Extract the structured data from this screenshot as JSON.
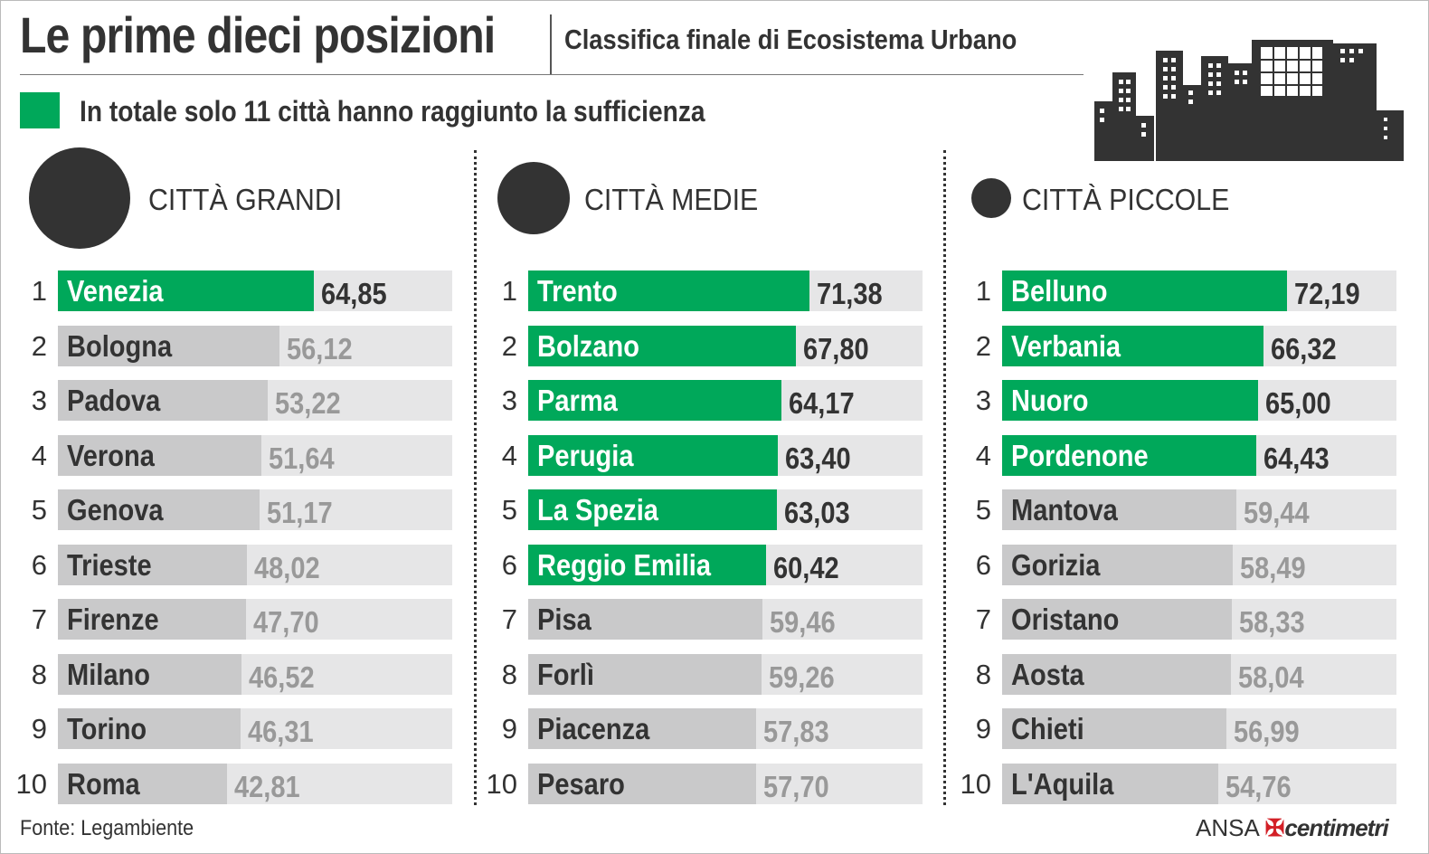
{
  "title": "Le prime dieci posizioni",
  "subtitle": "Classifica finale di Ecosistema Urbano",
  "legend": {
    "text": "In totale solo 11 città hanno raggiunto la sufficienza",
    "color": "#00a85a"
  },
  "source": "Fonte: Legambiente",
  "credit": {
    "agency": "ANSA",
    "mark": "✠",
    "brand": "centimetri"
  },
  "icons": {
    "skyline": "city-skyline-icon",
    "categories": "circle-size-icon"
  },
  "colors": {
    "highlight": "#00a85a",
    "neutral_bar": "#c9c9ca",
    "track": "#e6e6e7",
    "dark": "#333333"
  },
  "chart_data": [
    {
      "type": "bar",
      "title": "CITTÀ GRANDI",
      "orientation": "horizontal",
      "ranks": [
        "1",
        "2",
        "3",
        "4",
        "5",
        "6",
        "7",
        "8",
        "9",
        "10"
      ],
      "categories": [
        "Venezia",
        "Bologna",
        "Padova",
        "Verona",
        "Genova",
        "Trieste",
        "Firenze",
        "Milano",
        "Torino",
        "Roma"
      ],
      "values": [
        64.85,
        56.12,
        53.22,
        51.64,
        51.17,
        48.02,
        47.7,
        46.52,
        46.31,
        42.81
      ],
      "labels": [
        "64,85",
        "56,12",
        "53,22",
        "51,64",
        "51,17",
        "48,02",
        "47,70",
        "46,52",
        "46,31",
        "42,81"
      ],
      "highlighted": [
        true,
        false,
        false,
        false,
        false,
        false,
        false,
        false,
        false,
        false
      ],
      "xlim": [
        0,
        100
      ]
    },
    {
      "type": "bar",
      "title": "CITTÀ MEDIE",
      "orientation": "horizontal",
      "ranks": [
        "1",
        "2",
        "3",
        "4",
        "5",
        "6",
        "7",
        "8",
        "9",
        "10"
      ],
      "categories": [
        "Trento",
        "Bolzano",
        "Parma",
        "Perugia",
        "La Spezia",
        "Reggio Emilia",
        "Pisa",
        "Forlì",
        "Piacenza",
        "Pesaro"
      ],
      "values": [
        71.38,
        67.8,
        64.17,
        63.4,
        63.03,
        60.42,
        59.46,
        59.26,
        57.83,
        57.7
      ],
      "labels": [
        "71,38",
        "67,80",
        "64,17",
        "63,40",
        "63,03",
        "60,42",
        "59,46",
        "59,26",
        "57,83",
        "57,70"
      ],
      "highlighted": [
        true,
        true,
        true,
        true,
        true,
        true,
        false,
        false,
        false,
        false
      ],
      "xlim": [
        0,
        100
      ]
    },
    {
      "type": "bar",
      "title": "CITTÀ PICCOLE",
      "orientation": "horizontal",
      "ranks": [
        "1",
        "2",
        "3",
        "4",
        "5",
        "6",
        "7",
        "8",
        "9",
        "10"
      ],
      "categories": [
        "Belluno",
        "Verbania",
        "Nuoro",
        "Pordenone",
        "Mantova",
        "Gorizia",
        "Oristano",
        "Aosta",
        "Chieti",
        "L'Aquila"
      ],
      "values": [
        72.19,
        66.32,
        65.0,
        64.43,
        59.44,
        58.49,
        58.33,
        58.04,
        56.99,
        54.76
      ],
      "labels": [
        "72,19",
        "66,32",
        "65,00",
        "64,43",
        "59,44",
        "58,49",
        "58,33",
        "58,04",
        "56,99",
        "54,76"
      ],
      "highlighted": [
        true,
        true,
        true,
        true,
        false,
        false,
        false,
        false,
        false,
        false
      ],
      "xlim": [
        0,
        100
      ]
    }
  ]
}
